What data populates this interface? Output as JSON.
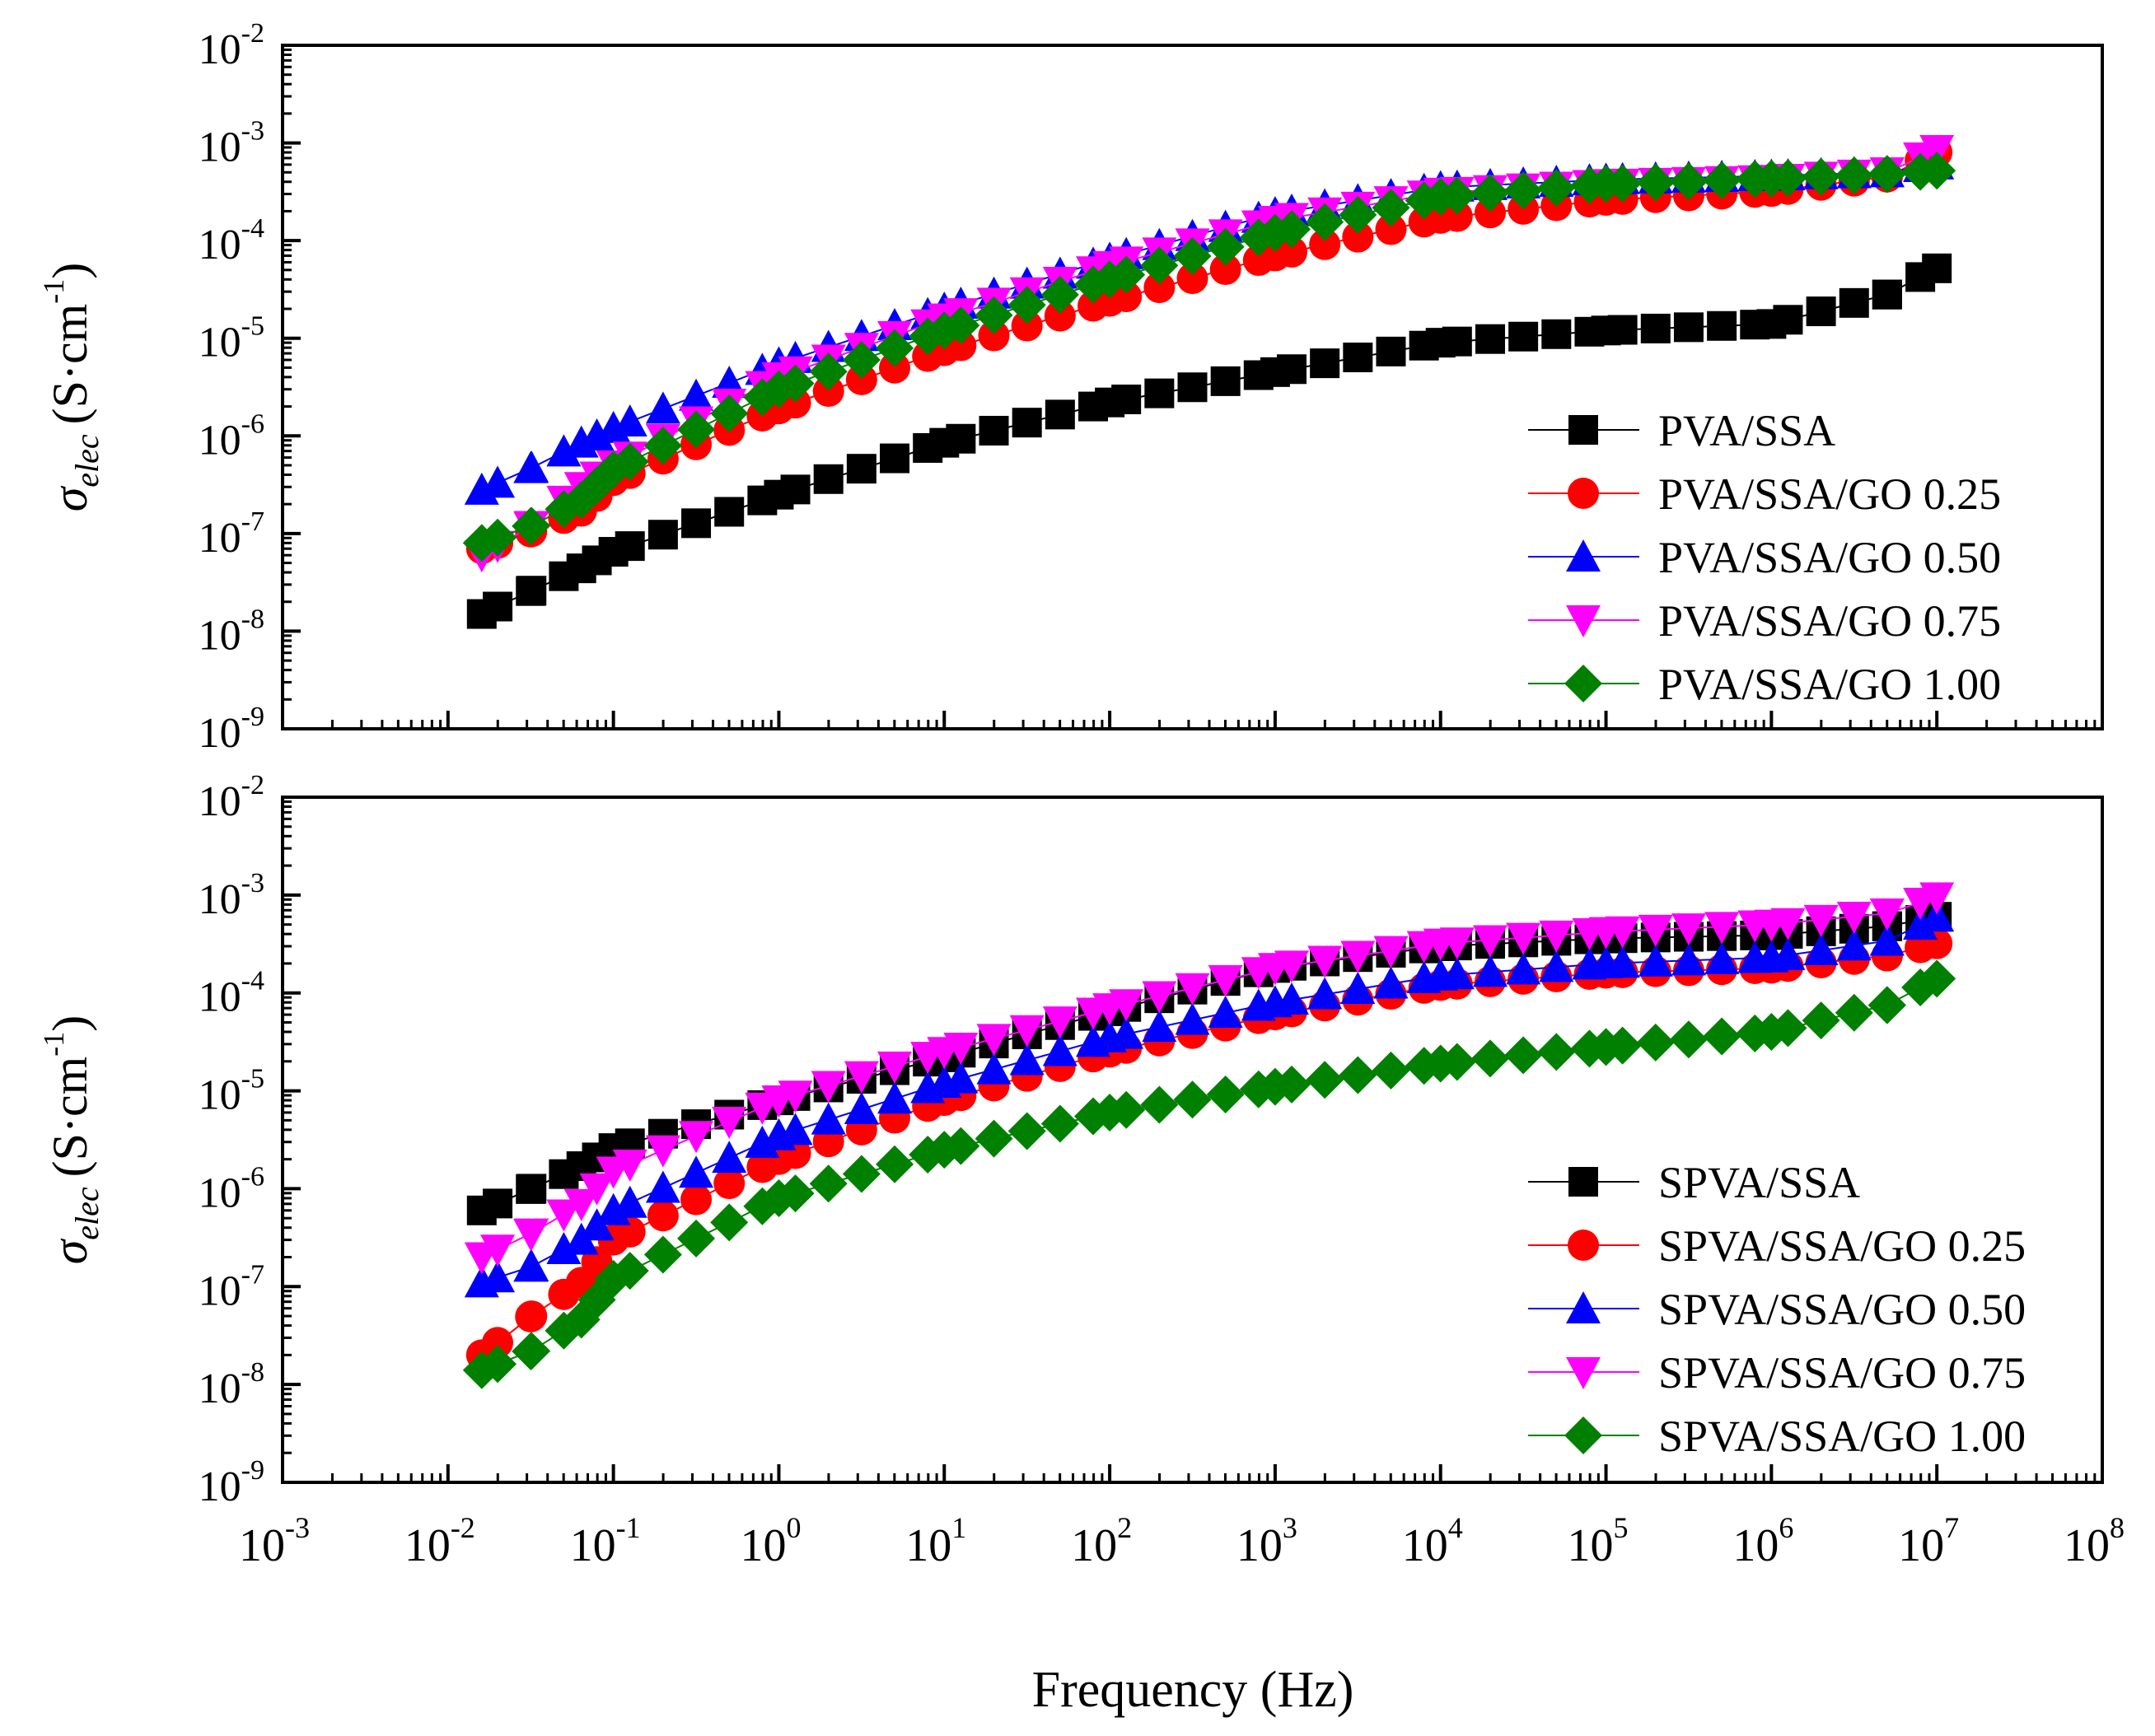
{
  "figure": {
    "xlabel": "Frequency (Hz)"
  },
  "chart_data": [
    {
      "type": "scatter",
      "panel": "top",
      "xscale": "log",
      "yscale": "log",
      "xlim": [
        0.001,
        100000000
      ],
      "ylim": [
        1e-09,
        0.01
      ],
      "xlabel": "Frequency (Hz)",
      "ylabel": {
        "sigma": "σ",
        "sub": "elec",
        "unit": "(S·cm",
        "exp": "-1",
        "close": ")"
      },
      "x_tick_labels": [
        {
          "base": "10",
          "exp": "-3"
        },
        {
          "base": "10",
          "exp": "-2"
        },
        {
          "base": "10",
          "exp": "-1"
        },
        {
          "base": "10",
          "exp": "0"
        },
        {
          "base": "10",
          "exp": "1"
        },
        {
          "base": "10",
          "exp": "2"
        },
        {
          "base": "10",
          "exp": "3"
        },
        {
          "base": "10",
          "exp": "4"
        },
        {
          "base": "10",
          "exp": "5"
        },
        {
          "base": "10",
          "exp": "6"
        },
        {
          "base": "10",
          "exp": "7"
        },
        {
          "base": "10",
          "exp": "8"
        }
      ],
      "y_tick_labels": [
        {
          "base": "10",
          "exp": "-9"
        },
        {
          "base": "10",
          "exp": "-8"
        },
        {
          "base": "10",
          "exp": "-7"
        },
        {
          "base": "10",
          "exp": "-6"
        },
        {
          "base": "10",
          "exp": "-5"
        },
        {
          "base": "10",
          "exp": "-4"
        },
        {
          "base": "10",
          "exp": "-3"
        },
        {
          "base": "10",
          "exp": "-2"
        }
      ],
      "legend_position": "right",
      "series": [
        {
          "name": "PVA/SSA",
          "color": "#000000",
          "marker": "square",
          "x": [
            0.016,
            0.032,
            0.064,
            0.1,
            1,
            10,
            100,
            1000,
            10000,
            100000,
            1000000,
            5000000,
            10000000
          ],
          "y": [
            1.5e-08,
            2.6e-08,
            4.4e-08,
            6.5e-08,
            2.5e-07,
            8.5e-07,
            2.2e-06,
            4.5e-06,
            9e-06,
            1.2e-05,
            1.4e-05,
            2.8e-05,
            5.2e-05
          ]
        },
        {
          "name": "PVA/SSA/GO 0.25",
          "color": "#ff0000",
          "marker": "circle",
          "x": [
            0.016,
            0.032,
            0.064,
            0.1,
            1,
            10,
            100,
            1000,
            10000,
            100000,
            1000000,
            5000000,
            10000000
          ],
          "y": [
            7e-08,
            1.05e-07,
            1.7e-07,
            3.5e-07,
            1.9e-06,
            7.5e-06,
            2.4e-05,
            7e-05,
            0.00017,
            0.00026,
            0.00032,
            0.00045,
            0.0008
          ]
        },
        {
          "name": "PVA/SSA/GO 0.50",
          "color": "#0000ff",
          "marker": "triangle-up",
          "x": [
            0.016,
            0.032,
            0.064,
            0.1,
            1,
            10,
            100,
            1000,
            10000,
            100000,
            1000000,
            5000000,
            10000000
          ],
          "y": [
            2.8e-07,
            4.7e-07,
            8.5e-07,
            1.2e-06,
            5.5e-06,
            2e-05,
            6.5e-05,
            0.00019,
            0.00035,
            0.00042,
            0.00046,
            0.0005,
            0.0006
          ]
        },
        {
          "name": "PVA/SSA/GO 0.75",
          "color": "#ff00ff",
          "marker": "triangle-down",
          "x": [
            0.016,
            0.032,
            0.064,
            0.1,
            1,
            10,
            100,
            1000,
            10000,
            100000,
            1000000,
            5000000,
            10000000
          ],
          "y": [
            6e-08,
            1.2e-07,
            3e-07,
            5e-07,
            4e-06,
            1.6e-05,
            5.5e-05,
            0.00016,
            0.00031,
            0.00038,
            0.00042,
            0.0005,
            0.00085
          ]
        },
        {
          "name": "PVA/SSA/GO 1.00",
          "color": "#008000",
          "marker": "diamond",
          "x": [
            0.016,
            0.032,
            0.064,
            0.1,
            1,
            10,
            100,
            1000,
            10000,
            100000,
            1000000,
            5000000,
            10000000
          ],
          "y": [
            8e-08,
            1.2e-07,
            2.2e-07,
            4.5e-07,
            3e-06,
            1.2e-05,
            4e-05,
            0.00012,
            0.00028,
            0.00038,
            0.00043,
            0.00048,
            0.00052
          ]
        }
      ]
    },
    {
      "type": "scatter",
      "panel": "bottom",
      "xscale": "log",
      "yscale": "log",
      "xlim": [
        0.001,
        100000000
      ],
      "ylim": [
        1e-09,
        0.01
      ],
      "xlabel": "Frequency (Hz)",
      "ylabel": {
        "sigma": "σ",
        "sub": "elec",
        "unit": "(S·cm",
        "exp": "-1",
        "close": ")"
      },
      "x_tick_labels": [
        {
          "base": "10",
          "exp": "-3"
        },
        {
          "base": "10",
          "exp": "-2"
        },
        {
          "base": "10",
          "exp": "-1"
        },
        {
          "base": "10",
          "exp": "0"
        },
        {
          "base": "10",
          "exp": "1"
        },
        {
          "base": "10",
          "exp": "2"
        },
        {
          "base": "10",
          "exp": "3"
        },
        {
          "base": "10",
          "exp": "4"
        },
        {
          "base": "10",
          "exp": "5"
        },
        {
          "base": "10",
          "exp": "6"
        },
        {
          "base": "10",
          "exp": "7"
        },
        {
          "base": "10",
          "exp": "8"
        }
      ],
      "y_tick_labels": [
        {
          "base": "10",
          "exp": "-9"
        },
        {
          "base": "10",
          "exp": "-8"
        },
        {
          "base": "10",
          "exp": "-7"
        },
        {
          "base": "10",
          "exp": "-6"
        },
        {
          "base": "10",
          "exp": "-5"
        },
        {
          "base": "10",
          "exp": "-4"
        },
        {
          "base": "10",
          "exp": "-3"
        },
        {
          "base": "10",
          "exp": "-2"
        }
      ],
      "legend_position": "right",
      "series": [
        {
          "name": "SPVA/SSA",
          "color": "#000000",
          "marker": "square",
          "x": [
            0.016,
            0.032,
            0.064,
            0.1,
            1,
            10,
            100,
            1000,
            10000,
            100000,
            1000000,
            5000000,
            10000000
          ],
          "y": [
            6e-07,
            1e-06,
            1.7e-06,
            2.6e-06,
            8e-06,
            2.2e-05,
            6.5e-05,
            0.00018,
            0.0003,
            0.00036,
            0.00039,
            0.00048,
            0.0006
          ]
        },
        {
          "name": "SPVA/SSA/GO 0.25",
          "color": "#ff0000",
          "marker": "circle",
          "x": [
            0.016,
            0.032,
            0.064,
            0.1,
            1,
            10,
            100,
            1000,
            10000,
            100000,
            1000000,
            5000000,
            10000000
          ],
          "y": [
            2e-08,
            5e-08,
            1.1e-07,
            3e-07,
            2e-06,
            8e-06,
            2.5e-05,
            6e-05,
            0.00012,
            0.00016,
            0.00018,
            0.00024,
            0.00032
          ]
        },
        {
          "name": "SPVA/SSA/GO 0.50",
          "color": "#0000ff",
          "marker": "triangle-up",
          "x": [
            0.016,
            0.032,
            0.064,
            0.1,
            1,
            10,
            100,
            1000,
            10000,
            100000,
            1000000,
            5000000,
            10000000
          ],
          "y": [
            1.1e-07,
            1.6e-07,
            3e-07,
            6e-07,
            3.5e-06,
            1.2e-05,
            3.5e-05,
            8e-05,
            0.00015,
            0.0002,
            0.00023,
            0.00034,
            0.0006
          ]
        },
        {
          "name": "SPVA/SSA/GO 0.75",
          "color": "#ff00ff",
          "marker": "triangle-down",
          "x": [
            0.016,
            0.032,
            0.064,
            0.1,
            1,
            10,
            100,
            1000,
            10000,
            100000,
            1000000,
            5000000,
            10000000
          ],
          "y": [
            2e-07,
            3.5e-07,
            7e-07,
            1.5e-06,
            8e-06,
            2.5e-05,
            7e-05,
            0.00018,
            0.00032,
            0.00042,
            0.0005,
            0.00065,
            0.00095
          ]
        },
        {
          "name": "SPVA/SSA/GO 1.00",
          "color": "#008000",
          "marker": "diamond",
          "x": [
            0.016,
            0.032,
            0.064,
            0.1,
            1,
            10,
            100,
            1000,
            10000,
            100000,
            1000000,
            5000000,
            10000000
          ],
          "y": [
            1.4e-08,
            2.2e-08,
            4.6e-08,
            1.2e-07,
            8e-07,
            2.5e-06,
            6e-06,
            1.1e-05,
            1.9e-05,
            2.8e-05,
            4e-05,
            7.5e-05,
            0.00014
          ]
        }
      ]
    }
  ]
}
